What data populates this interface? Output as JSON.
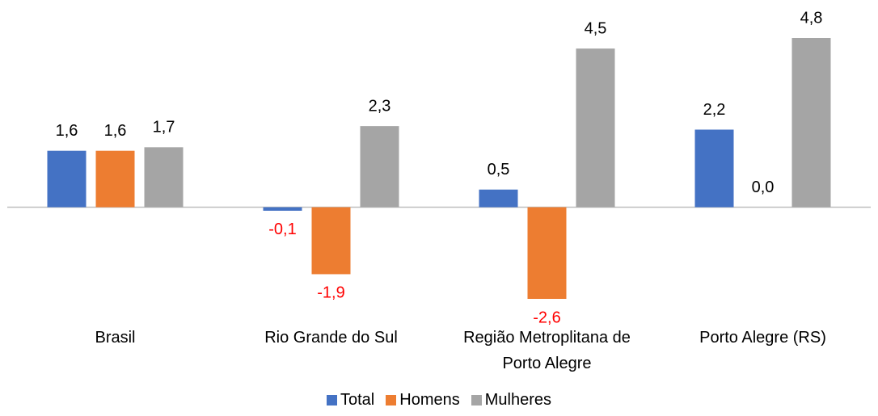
{
  "chart_data": {
    "type": "bar",
    "categories": [
      "Brasil",
      "Rio Grande do Sul",
      "Região Metroplitana de Porto Alegre",
      "Porto Alegre (RS)"
    ],
    "series": [
      {
        "name": "Total",
        "color": "#4472c4",
        "values": [
          1.6,
          -0.1,
          0.5,
          2.2
        ],
        "value_labels": [
          "1,6",
          "-0,1",
          "0,5",
          "2,2"
        ]
      },
      {
        "name": "Homens",
        "color": "#ed7d31",
        "values": [
          1.6,
          -1.9,
          -2.6,
          0.0
        ],
        "value_labels": [
          "1,6",
          "-1,9",
          "-2,6",
          "0,0"
        ]
      },
      {
        "name": "Mulheres",
        "color": "#a5a5a5",
        "values": [
          1.7,
          2.3,
          4.5,
          4.8
        ],
        "value_labels": [
          "1,7",
          "2,3",
          "4,5",
          "4,8"
        ]
      }
    ],
    "label_color": "#000000",
    "negative_label_color": "#ff0000",
    "legend": "bottom"
  }
}
